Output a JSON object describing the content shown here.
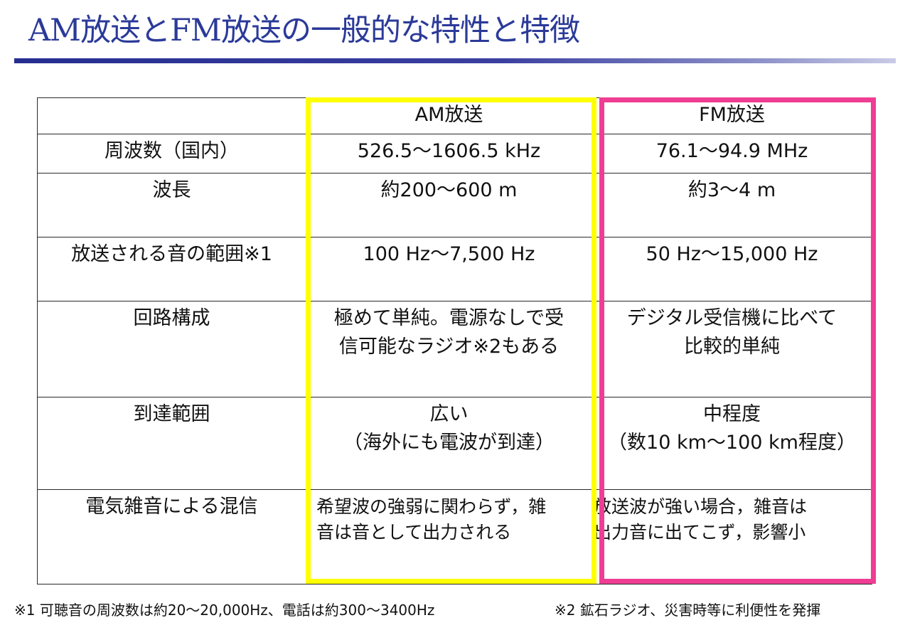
{
  "title": "AM放送とFM放送の一般的な特性と特徴",
  "table": {
    "header": [
      "",
      "AM放送",
      "FM放送"
    ],
    "rows": [
      {
        "label": "周波数（国内）",
        "am": [
          "526.5～1606.5 kHz"
        ],
        "fm": [
          "76.1～94.9 MHz"
        ]
      },
      {
        "label": "波長",
        "am": [
          "約200～600 m"
        ],
        "fm": [
          "約3～4 m"
        ]
      },
      {
        "label": "放送される音の範囲※1",
        "am": [
          "100 Hz～7,500 Hz"
        ],
        "fm": [
          "50 Hz～15,000 Hz"
        ]
      },
      {
        "label": "回路構成",
        "am": [
          "極めて単純。電源なしで受",
          "信可能なラジオ※2もある"
        ],
        "fm": [
          "デジタル受信機に比べて",
          "比較的単純"
        ]
      },
      {
        "label": "到達範囲",
        "am": [
          "広い",
          "（海外にも電波が到達）"
        ],
        "fm": [
          "中程度",
          "（数10 km～100 km程度）"
        ]
      },
      {
        "label": "電気雑音による混信",
        "am": [
          "希望波の強弱に関わらず，雑",
          "音は音として出力される"
        ],
        "fm": [
          "放送波が強い場合，雑音は",
          "出力音に出てこず，影響小"
        ]
      }
    ]
  },
  "footnotes": [
    "※1 可聴音の周波数は約20～20,000Hz、電話は約300～3400Hz",
    "※2 鉱石ラジオ、災害時等に利便性を発揮"
  ],
  "colors": {
    "title": "#2b3a99",
    "am_frame": "#ffff00",
    "fm_frame": "#ef3d94"
  }
}
